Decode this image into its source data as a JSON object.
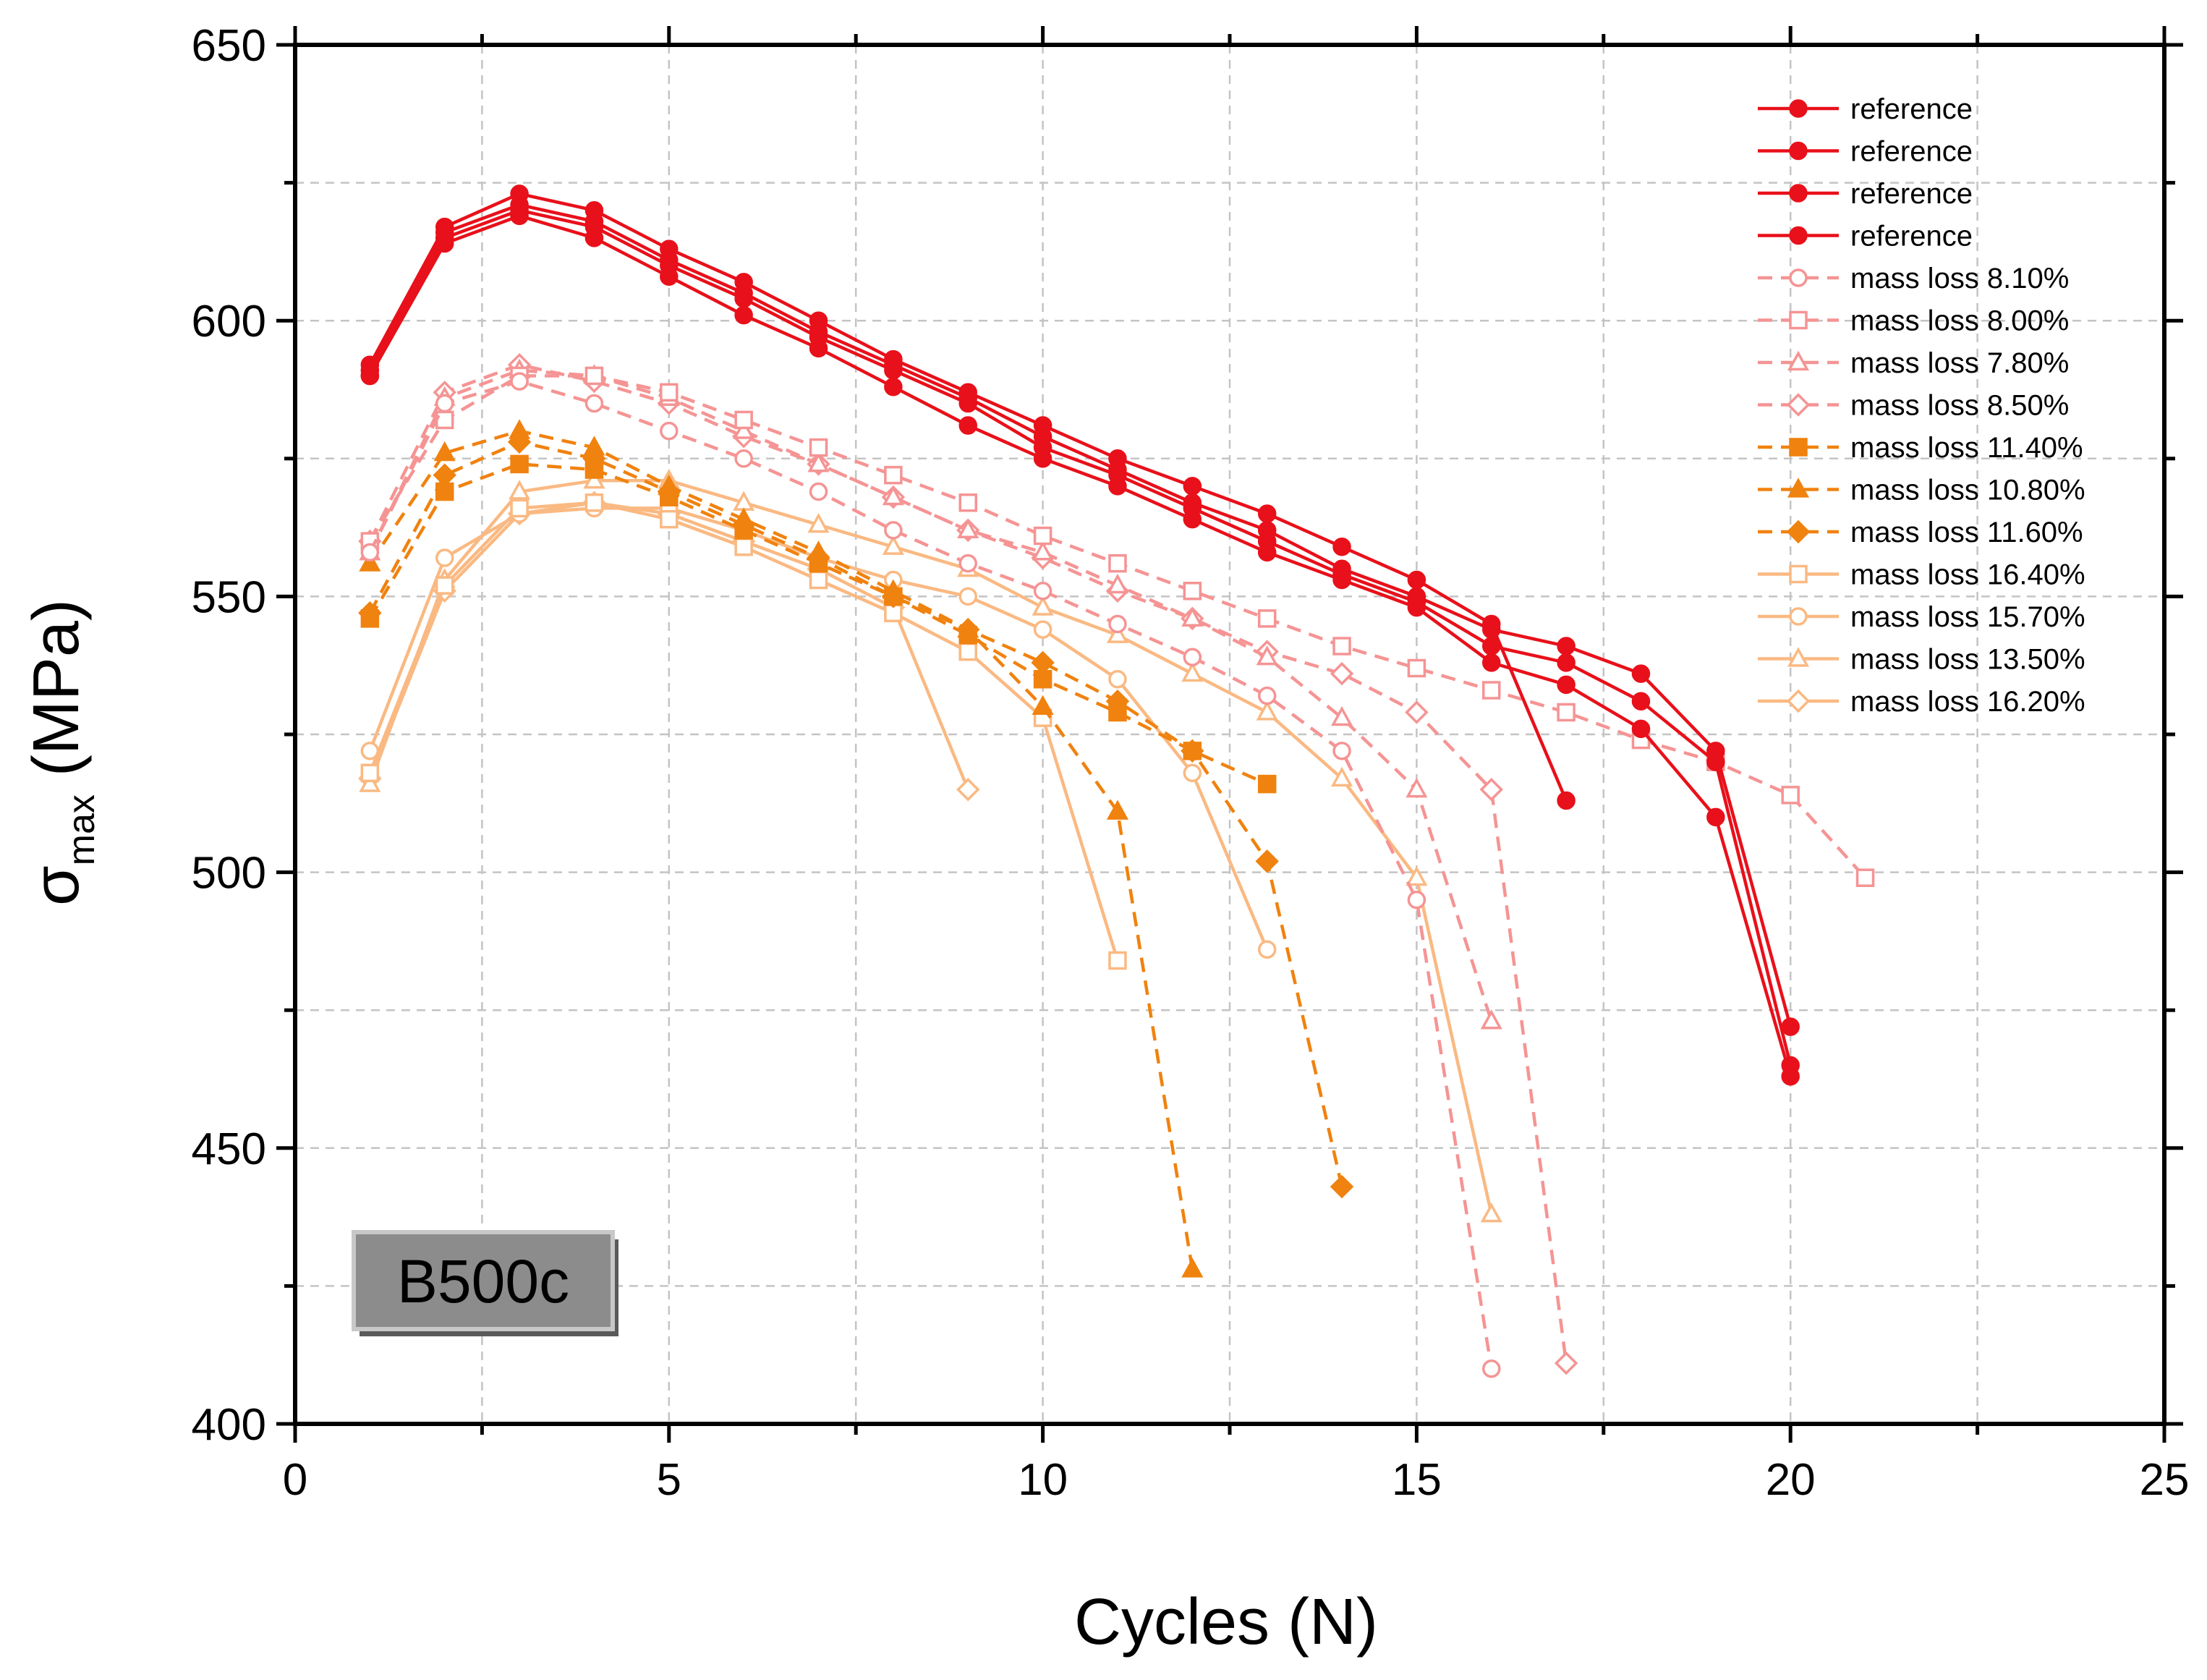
{
  "chart_data": {
    "type": "line",
    "title": "",
    "xlabel": "Cycles (N)",
    "ylabel": {
      "symbol": "σ",
      "subscript": "max",
      "unit": "(MPa)"
    },
    "xlim": [
      0,
      25
    ],
    "ylim": [
      400,
      650
    ],
    "x_ticks": [
      0,
      5,
      10,
      15,
      20,
      25
    ],
    "y_ticks": [
      400,
      450,
      500,
      550,
      600,
      650
    ],
    "grid": true,
    "legend_position": "top-right",
    "annotation": "B500c",
    "series": [
      {
        "name": "reference",
        "color": "#e8101a",
        "dash": "solid",
        "marker": "circle",
        "fill": "solid",
        "x": [
          1,
          2,
          3,
          4,
          5,
          6,
          7,
          8,
          9,
          10,
          11,
          12,
          13,
          14,
          15,
          16,
          17
        ],
        "y": [
          592,
          617,
          623,
          620,
          613,
          607,
          600,
          593,
          587,
          581,
          575,
          570,
          565,
          559,
          553,
          545,
          513
        ]
      },
      {
        "name": "reference",
        "color": "#e8101a",
        "dash": "solid",
        "marker": "circle",
        "fill": "solid",
        "x": [
          1,
          2,
          3,
          4,
          5,
          6,
          7,
          8,
          9,
          10,
          11,
          12,
          13,
          14,
          15,
          16,
          17,
          18,
          19,
          20
        ],
        "y": [
          591,
          616,
          621,
          618,
          611,
          605,
          598,
          592,
          586,
          579,
          573,
          567,
          562,
          555,
          550,
          544,
          541,
          536,
          522,
          472
        ]
      },
      {
        "name": "reference",
        "color": "#e8101a",
        "dash": "solid",
        "marker": "circle",
        "fill": "solid",
        "x": [
          1,
          2,
          3,
          4,
          5,
          6,
          7,
          8,
          9,
          10,
          11,
          12,
          13,
          14,
          15,
          16,
          17,
          18,
          19,
          20
        ],
        "y": [
          590,
          615,
          620,
          617,
          610,
          604,
          597,
          591,
          585,
          577,
          572,
          566,
          560,
          554,
          549,
          541,
          538,
          531,
          520,
          465
        ]
      },
      {
        "name": "reference",
        "color": "#e8101a",
        "dash": "solid",
        "marker": "circle",
        "fill": "solid",
        "x": [
          1,
          2,
          3,
          4,
          5,
          6,
          7,
          8,
          9,
          10,
          11,
          12,
          13,
          14,
          15,
          16,
          17,
          18,
          19,
          20
        ],
        "y": [
          590,
          614,
          619,
          615,
          608,
          601,
          595,
          588,
          581,
          575,
          570,
          564,
          558,
          553,
          548,
          538,
          534,
          526,
          510,
          463
        ]
      },
      {
        "name": "mass loss 8.10%",
        "color": "#f59494",
        "dash": "dashed",
        "marker": "circle",
        "fill": "open",
        "x": [
          1,
          2,
          3,
          4,
          5,
          6,
          7,
          8,
          9,
          10,
          11,
          12,
          13,
          14,
          15,
          16
        ],
        "y": [
          558,
          585,
          589,
          585,
          580,
          575,
          569,
          562,
          556,
          551,
          545,
          539,
          532,
          522,
          495,
          410
        ]
      },
      {
        "name": "mass loss 8.00%",
        "color": "#f59494",
        "dash": "dashed",
        "marker": "square",
        "fill": "open",
        "x": [
          1,
          2,
          3,
          4,
          5,
          6,
          7,
          8,
          9,
          10,
          11,
          12,
          13,
          14,
          15,
          16,
          17,
          18,
          19,
          20,
          21
        ],
        "y": [
          560,
          582,
          590,
          590,
          587,
          582,
          577,
          572,
          567,
          561,
          556,
          551,
          546,
          541,
          537,
          533,
          529,
          524,
          520,
          514,
          499
        ]
      },
      {
        "name": "mass loss 7.80%",
        "color": "#f59494",
        "dash": "dashed",
        "marker": "triangle",
        "fill": "open",
        "x": [
          1,
          2,
          3,
          4,
          5,
          6,
          7,
          8,
          9,
          10,
          11,
          12,
          13,
          14,
          15,
          16
        ],
        "y": [
          558,
          586,
          591,
          590,
          586,
          580,
          574,
          568,
          562,
          558,
          552,
          546,
          539,
          528,
          515,
          473
        ]
      },
      {
        "name": "mass loss 8.50%",
        "color": "#f59494",
        "dash": "dashed",
        "marker": "diamond",
        "fill": "open",
        "x": [
          1,
          2,
          3,
          4,
          5,
          6,
          7,
          8,
          9,
          10,
          11,
          12,
          13,
          14,
          15,
          16,
          17
        ],
        "y": [
          560,
          587,
          592,
          589,
          585,
          579,
          574,
          568,
          562,
          557,
          551,
          546,
          540,
          536,
          529,
          515,
          411
        ]
      },
      {
        "name": "mass loss 11.40%",
        "color": "#f0820f",
        "dash": "dashed",
        "marker": "square",
        "fill": "solid",
        "x": [
          1,
          2,
          3,
          4,
          5,
          6,
          7,
          8,
          9,
          10,
          11,
          12,
          13
        ],
        "y": [
          546,
          569,
          574,
          573,
          568,
          562,
          556,
          550,
          543,
          535,
          529,
          522,
          516
        ]
      },
      {
        "name": "mass loss 10.80%",
        "color": "#f0820f",
        "dash": "dashed",
        "marker": "triangle",
        "fill": "solid",
        "x": [
          1,
          2,
          3,
          4,
          5,
          6,
          7,
          8,
          9,
          10,
          11,
          12
        ],
        "y": [
          556,
          576,
          580,
          577,
          570,
          564,
          558,
          551,
          544,
          530,
          511,
          428
        ]
      },
      {
        "name": "mass loss 11.60%",
        "color": "#f0820f",
        "dash": "dashed",
        "marker": "diamond",
        "fill": "solid",
        "x": [
          1,
          2,
          3,
          4,
          5,
          6,
          7,
          8,
          9,
          10,
          11,
          12,
          13,
          14
        ],
        "y": [
          547,
          572,
          578,
          575,
          569,
          563,
          557,
          550,
          544,
          538,
          531,
          522,
          502,
          443
        ]
      },
      {
        "name": "mass loss 16.40%",
        "color": "#fab982",
        "dash": "solid",
        "marker": "square",
        "fill": "open",
        "x": [
          1,
          2,
          3,
          4,
          5,
          6,
          7,
          8,
          9,
          10,
          11
        ],
        "y": [
          518,
          552,
          566,
          567,
          564,
          559,
          553,
          547,
          540,
          528,
          484
        ]
      },
      {
        "name": "mass loss 15.70%",
        "color": "#fab982",
        "dash": "solid",
        "marker": "circle",
        "fill": "open",
        "x": [
          1,
          2,
          3,
          4,
          5,
          6,
          7,
          8,
          9,
          10,
          11,
          12,
          13
        ],
        "y": [
          522,
          557,
          565,
          566,
          566,
          562,
          557,
          553,
          550,
          544,
          535,
          518,
          486
        ]
      },
      {
        "name": "mass loss 13.50%",
        "color": "#fab982",
        "dash": "solid",
        "marker": "triangle",
        "fill": "open",
        "x": [
          1,
          2,
          3,
          4,
          5,
          6,
          7,
          8,
          9,
          10,
          11,
          12,
          13,
          14,
          15,
          16
        ],
        "y": [
          516,
          553,
          569,
          571,
          571,
          567,
          563,
          559,
          555,
          548,
          543,
          536,
          529,
          517,
          499,
          438
        ]
      },
      {
        "name": "mass loss 16.20%",
        "color": "#fab982",
        "dash": "solid",
        "marker": "diamond",
        "fill": "open",
        "x": [
          1,
          2,
          3,
          4,
          5,
          6,
          7,
          8,
          9
        ],
        "y": [
          517,
          551,
          565,
          567,
          565,
          560,
          555,
          548,
          515
        ]
      }
    ]
  }
}
